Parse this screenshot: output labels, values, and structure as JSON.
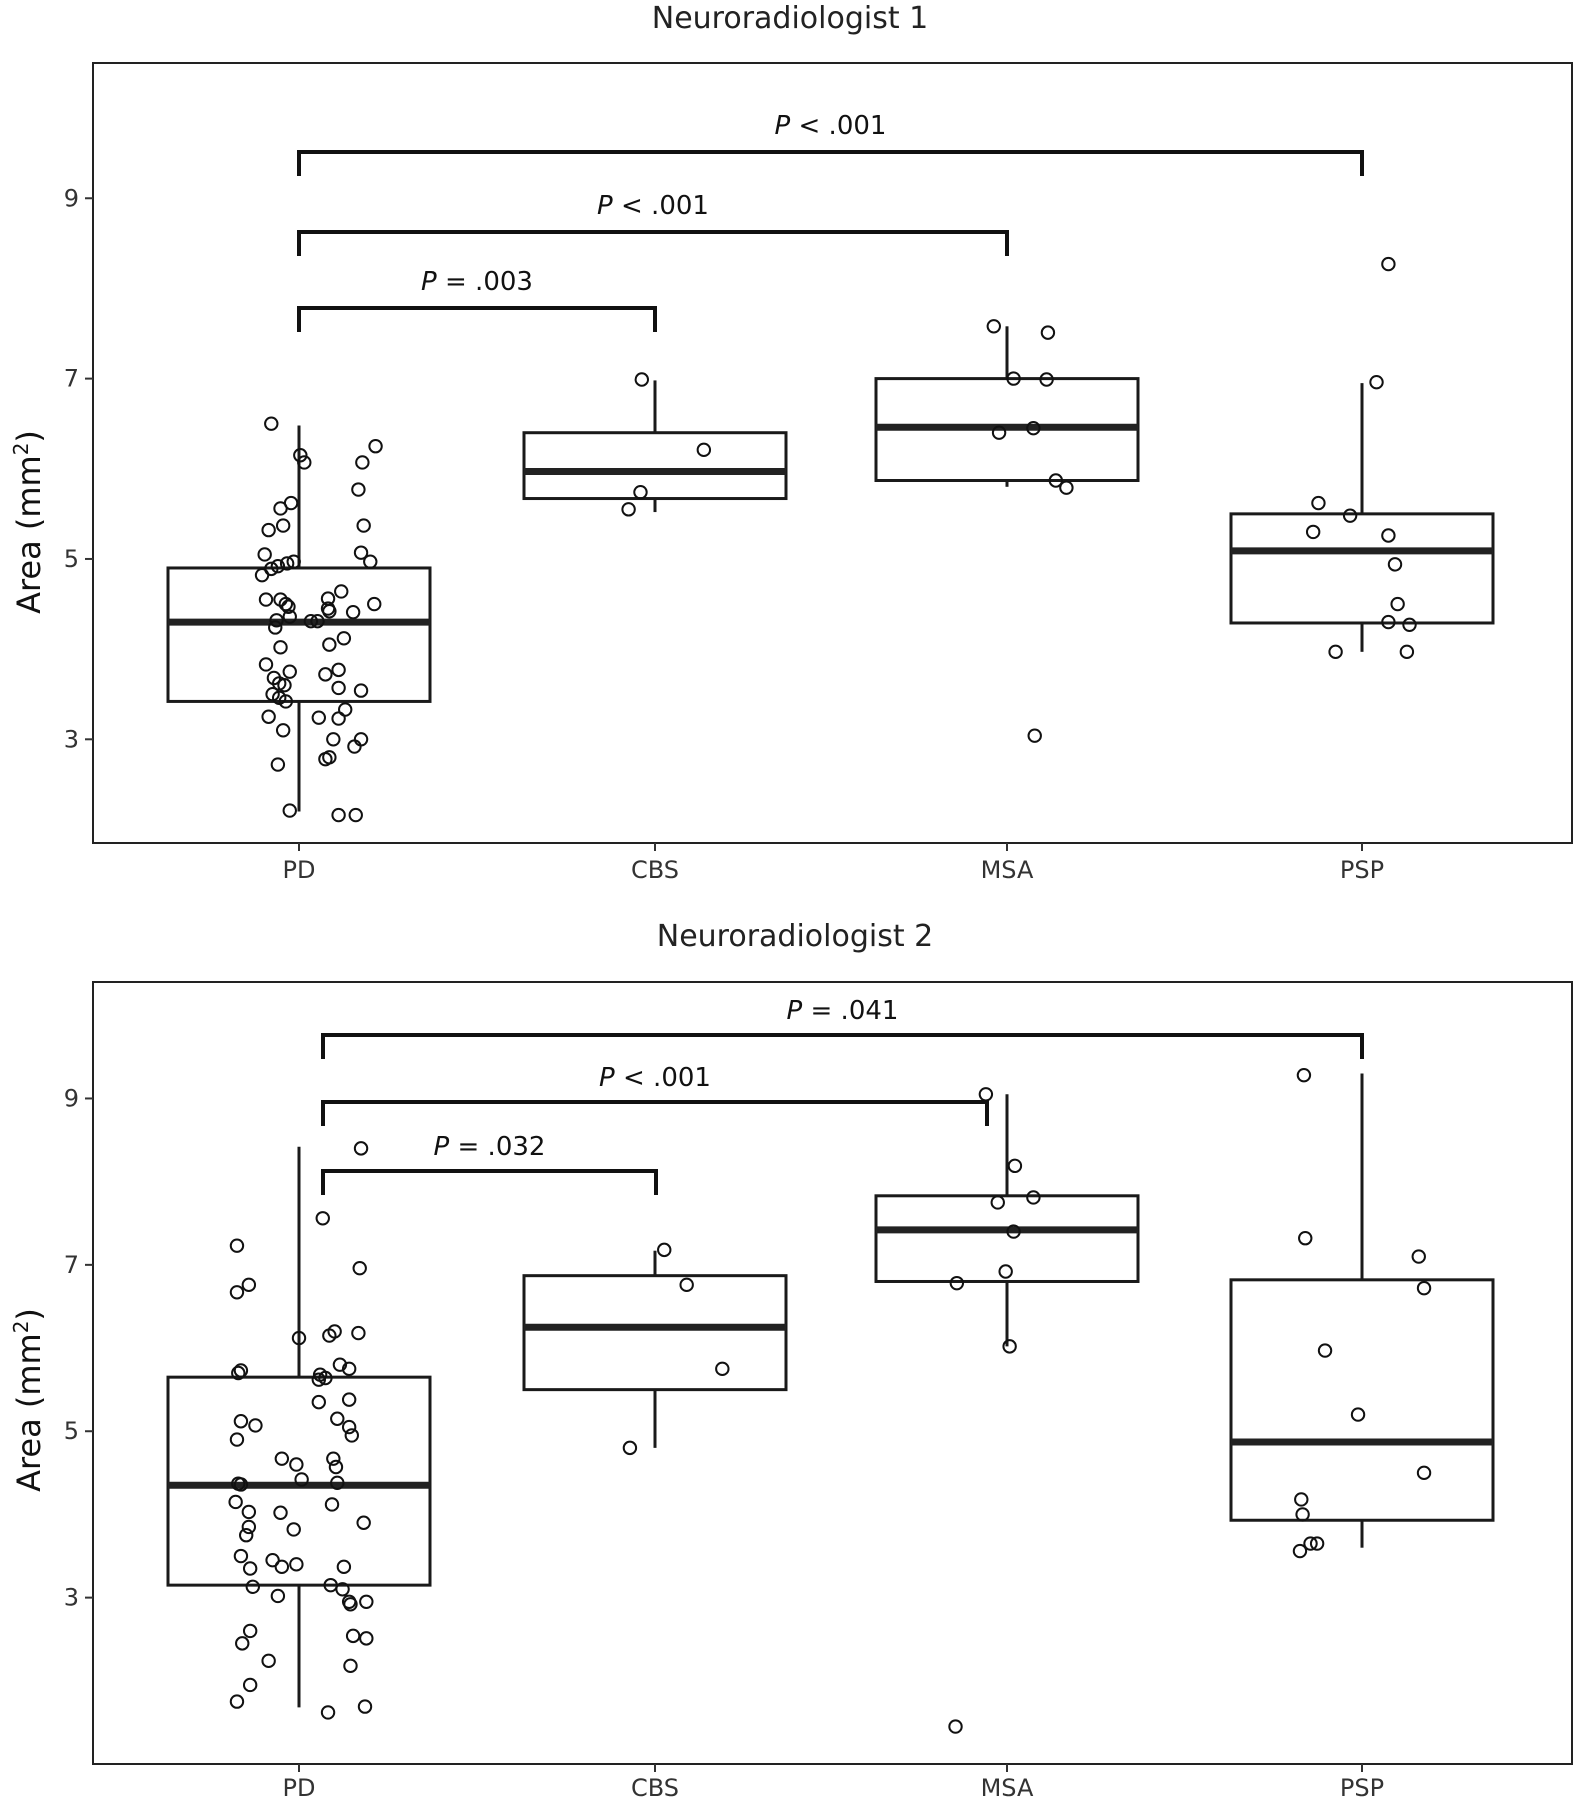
{
  "chart_data": [
    {
      "type": "box",
      "title": "Neuroradiologist 1",
      "ylabel": "Area (mm²)",
      "ylabel_base": "Area (mm",
      "ylabel_sup": "2",
      "ylabel_close": ")",
      "ylim": [
        1.85,
        10.5
      ],
      "yticks": [
        3,
        5,
        7,
        9
      ],
      "categories": [
        "PD",
        "CBS",
        "MSA",
        "PSP"
      ],
      "boxes": [
        {
          "min": 2.2,
          "q1": 3.42,
          "median": 4.3,
          "q3": 4.9,
          "max": 6.48
        },
        {
          "min": 5.52,
          "q1": 5.67,
          "median": 5.97,
          "q3": 6.4,
          "max": 6.98
        },
        {
          "min": 5.8,
          "q1": 5.87,
          "median": 6.46,
          "q3": 7.0,
          "max": 7.58
        },
        {
          "min": 3.97,
          "q1": 4.29,
          "median": 5.09,
          "q3": 5.5,
          "max": 6.95
        }
      ],
      "points": [
        [
          [
            -0.21,
            6.5
          ],
          [
            0.01,
            6.15
          ],
          [
            0.04,
            6.07
          ],
          [
            0.58,
            6.25
          ],
          [
            0.48,
            6.07
          ],
          [
            0.45,
            5.77
          ],
          [
            0.49,
            5.37
          ],
          [
            -0.06,
            5.62
          ],
          [
            -0.14,
            5.56
          ],
          [
            -0.12,
            5.37
          ],
          [
            -0.23,
            5.32
          ],
          [
            -0.26,
            5.05
          ],
          [
            0.47,
            5.07
          ],
          [
            0.54,
            4.97
          ],
          [
            -0.04,
            4.97
          ],
          [
            -0.09,
            4.95
          ],
          [
            -0.16,
            4.92
          ],
          [
            -0.28,
            4.82
          ],
          [
            -0.21,
            4.89
          ],
          [
            0.32,
            4.64
          ],
          [
            0.22,
            4.56
          ],
          [
            0.57,
            4.5
          ],
          [
            -0.14,
            4.55
          ],
          [
            -0.1,
            4.5
          ],
          [
            -0.08,
            4.47
          ],
          [
            0.22,
            4.45
          ],
          [
            0.23,
            4.42
          ],
          [
            0.41,
            4.41
          ],
          [
            -0.25,
            4.55
          ],
          [
            -0.07,
            4.36
          ],
          [
            -0.17,
            4.32
          ],
          [
            0.09,
            4.31
          ],
          [
            0.14,
            4.31
          ],
          [
            -0.18,
            4.24
          ],
          [
            0.34,
            4.12
          ],
          [
            0.23,
            4.05
          ],
          [
            -0.14,
            4.02
          ],
          [
            -0.25,
            3.83
          ],
          [
            0.3,
            3.77
          ],
          [
            0.2,
            3.72
          ],
          [
            -0.07,
            3.75
          ],
          [
            -0.19,
            3.68
          ],
          [
            -0.15,
            3.62
          ],
          [
            -0.11,
            3.6
          ],
          [
            0.3,
            3.57
          ],
          [
            0.47,
            3.54
          ],
          [
            -0.15,
            3.46
          ],
          [
            -0.1,
            3.42
          ],
          [
            -0.2,
            3.5
          ],
          [
            0.35,
            3.33
          ],
          [
            -0.23,
            3.25
          ],
          [
            0.15,
            3.24
          ],
          [
            0.3,
            3.23
          ],
          [
            -0.12,
            3.1
          ],
          [
            0.26,
            3.0
          ],
          [
            0.47,
            3.0
          ],
          [
            0.42,
            2.92
          ],
          [
            0.2,
            2.78
          ],
          [
            0.23,
            2.8
          ],
          [
            -0.16,
            2.72
          ],
          [
            -0.07,
            2.21
          ],
          [
            0.3,
            2.16
          ],
          [
            0.43,
            2.16
          ]
        ],
        [
          [
            -0.1,
            6.99
          ],
          [
            0.37,
            6.21
          ],
          [
            -0.11,
            5.74
          ],
          [
            -0.2,
            5.55
          ]
        ],
        [
          [
            -0.1,
            7.58
          ],
          [
            0.31,
            7.51
          ],
          [
            0.05,
            7.0
          ],
          [
            0.3,
            6.99
          ],
          [
            -0.06,
            6.4
          ],
          [
            0.2,
            6.45
          ],
          [
            0.37,
            5.87
          ],
          [
            0.45,
            5.79
          ],
          [
            0.21,
            3.04
          ]
        ],
        [
          [
            0.2,
            8.27
          ],
          [
            0.11,
            6.96
          ],
          [
            -0.33,
            5.62
          ],
          [
            -0.09,
            5.48
          ],
          [
            -0.37,
            5.3
          ],
          [
            0.2,
            5.26
          ],
          [
            0.25,
            4.94
          ],
          [
            0.27,
            4.5
          ],
          [
            0.2,
            4.3
          ],
          [
            0.36,
            4.27
          ],
          [
            -0.2,
            3.97
          ],
          [
            0.34,
            3.97
          ]
        ]
      ],
      "brackets": [
        {
          "from": "PD",
          "to": "PSP",
          "label_prefix": "P",
          "label_rest": " < .001"
        },
        {
          "from": "PD",
          "to": "MSA",
          "label_prefix": "P",
          "label_rest": " < .001"
        },
        {
          "from": "PD",
          "to": "CBS",
          "label_prefix": "P",
          "label_rest": " = .003"
        }
      ]
    },
    {
      "type": "box",
      "title": "Neuroradiologist 2",
      "ylabel": "Area (mm²)",
      "ylabel_base": "Area (mm",
      "ylabel_sup": "2",
      "ylabel_close": ")",
      "ylim": [
        1.0,
        10.4
      ],
      "yticks": [
        3,
        5,
        7,
        9
      ],
      "categories": [
        "PD",
        "CBS",
        "MSA",
        "PSP"
      ],
      "boxes": [
        {
          "min": 1.68,
          "q1": 3.15,
          "median": 4.35,
          "q3": 5.65,
          "max": 8.42
        },
        {
          "min": 4.8,
          "q1": 5.5,
          "median": 6.25,
          "q3": 6.87,
          "max": 7.17
        },
        {
          "min": 6.02,
          "q1": 6.8,
          "median": 7.42,
          "q3": 7.83,
          "max": 9.05
        },
        {
          "min": 3.6,
          "q1": 3.93,
          "median": 4.87,
          "q3": 6.82,
          "max": 9.3
        }
      ],
      "points": [
        [
          [
            0.47,
            8.4
          ],
          [
            0.18,
            7.56
          ],
          [
            -0.47,
            7.23
          ],
          [
            -0.47,
            6.67
          ],
          [
            -0.38,
            6.76
          ],
          [
            0.46,
            6.96
          ],
          [
            0.0,
            6.12
          ],
          [
            0.23,
            6.15
          ],
          [
            0.27,
            6.2
          ],
          [
            0.45,
            6.18
          ],
          [
            -0.46,
            5.7
          ],
          [
            -0.44,
            5.73
          ],
          [
            0.16,
            5.68
          ],
          [
            0.15,
            5.62
          ],
          [
            0.2,
            5.64
          ],
          [
            0.31,
            5.8
          ],
          [
            0.38,
            5.75
          ],
          [
            0.15,
            5.35
          ],
          [
            0.38,
            5.38
          ],
          [
            0.29,
            5.15
          ],
          [
            0.38,
            5.05
          ],
          [
            0.4,
            4.95
          ],
          [
            -0.47,
            4.9
          ],
          [
            -0.44,
            5.12
          ],
          [
            -0.33,
            5.07
          ],
          [
            -0.13,
            4.67
          ],
          [
            -0.02,
            4.6
          ],
          [
            0.26,
            4.67
          ],
          [
            0.28,
            4.57
          ],
          [
            -0.46,
            4.37
          ],
          [
            -0.44,
            4.36
          ],
          [
            0.02,
            4.42
          ],
          [
            0.29,
            4.38
          ],
          [
            -0.48,
            4.15
          ],
          [
            -0.38,
            4.03
          ],
          [
            -0.14,
            4.02
          ],
          [
            0.25,
            4.12
          ],
          [
            0.49,
            3.9
          ],
          [
            -0.38,
            3.85
          ],
          [
            -0.4,
            3.75
          ],
          [
            -0.04,
            3.82
          ],
          [
            -0.44,
            3.5
          ],
          [
            -0.2,
            3.45
          ],
          [
            -0.13,
            3.37
          ],
          [
            -0.37,
            3.35
          ],
          [
            -0.02,
            3.4
          ],
          [
            0.34,
            3.37
          ],
          [
            0.24,
            3.15
          ],
          [
            0.33,
            3.1
          ],
          [
            -0.35,
            3.13
          ],
          [
            -0.16,
            3.02
          ],
          [
            0.38,
            2.95
          ],
          [
            0.39,
            2.92
          ],
          [
            0.51,
            2.95
          ],
          [
            -0.37,
            2.6
          ],
          [
            -0.43,
            2.45
          ],
          [
            0.41,
            2.54
          ],
          [
            0.51,
            2.51
          ],
          [
            -0.23,
            2.24
          ],
          [
            0.39,
            2.18
          ],
          [
            -0.37,
            1.95
          ],
          [
            -0.47,
            1.75
          ],
          [
            0.22,
            1.62
          ],
          [
            0.5,
            1.69
          ]
        ],
        [
          [
            0.07,
            7.18
          ],
          [
            0.24,
            6.76
          ],
          [
            0.51,
            5.75
          ],
          [
            -0.19,
            4.8
          ]
        ],
        [
          [
            -0.16,
            9.05
          ],
          [
            0.06,
            8.19
          ],
          [
            -0.07,
            7.75
          ],
          [
            0.05,
            7.4
          ],
          [
            0.2,
            7.81
          ],
          [
            -0.01,
            6.92
          ],
          [
            -0.38,
            6.78
          ],
          [
            0.02,
            6.02
          ],
          [
            -0.39,
            1.45
          ]
        ],
        [
          [
            -0.44,
            9.28
          ],
          [
            -0.43,
            7.32
          ],
          [
            0.43,
            7.1
          ],
          [
            -0.28,
            5.97
          ],
          [
            0.47,
            6.72
          ],
          [
            -0.03,
            5.2
          ],
          [
            0.47,
            4.5
          ],
          [
            -0.46,
            4.18
          ],
          [
            -0.45,
            4.0
          ],
          [
            -0.47,
            3.56
          ],
          [
            -0.39,
            3.65
          ],
          [
            -0.34,
            3.65
          ]
        ]
      ],
      "brackets": [
        {
          "from": "PD",
          "to": "PSP",
          "label_prefix": "P",
          "label_rest": " = .041"
        },
        {
          "from": "PD",
          "to": "MSA",
          "label_prefix": "P",
          "label_rest": " < .001"
        },
        {
          "from": "PD",
          "to": "CBS",
          "label_prefix": "P",
          "label_rest": " = .032"
        }
      ]
    }
  ]
}
